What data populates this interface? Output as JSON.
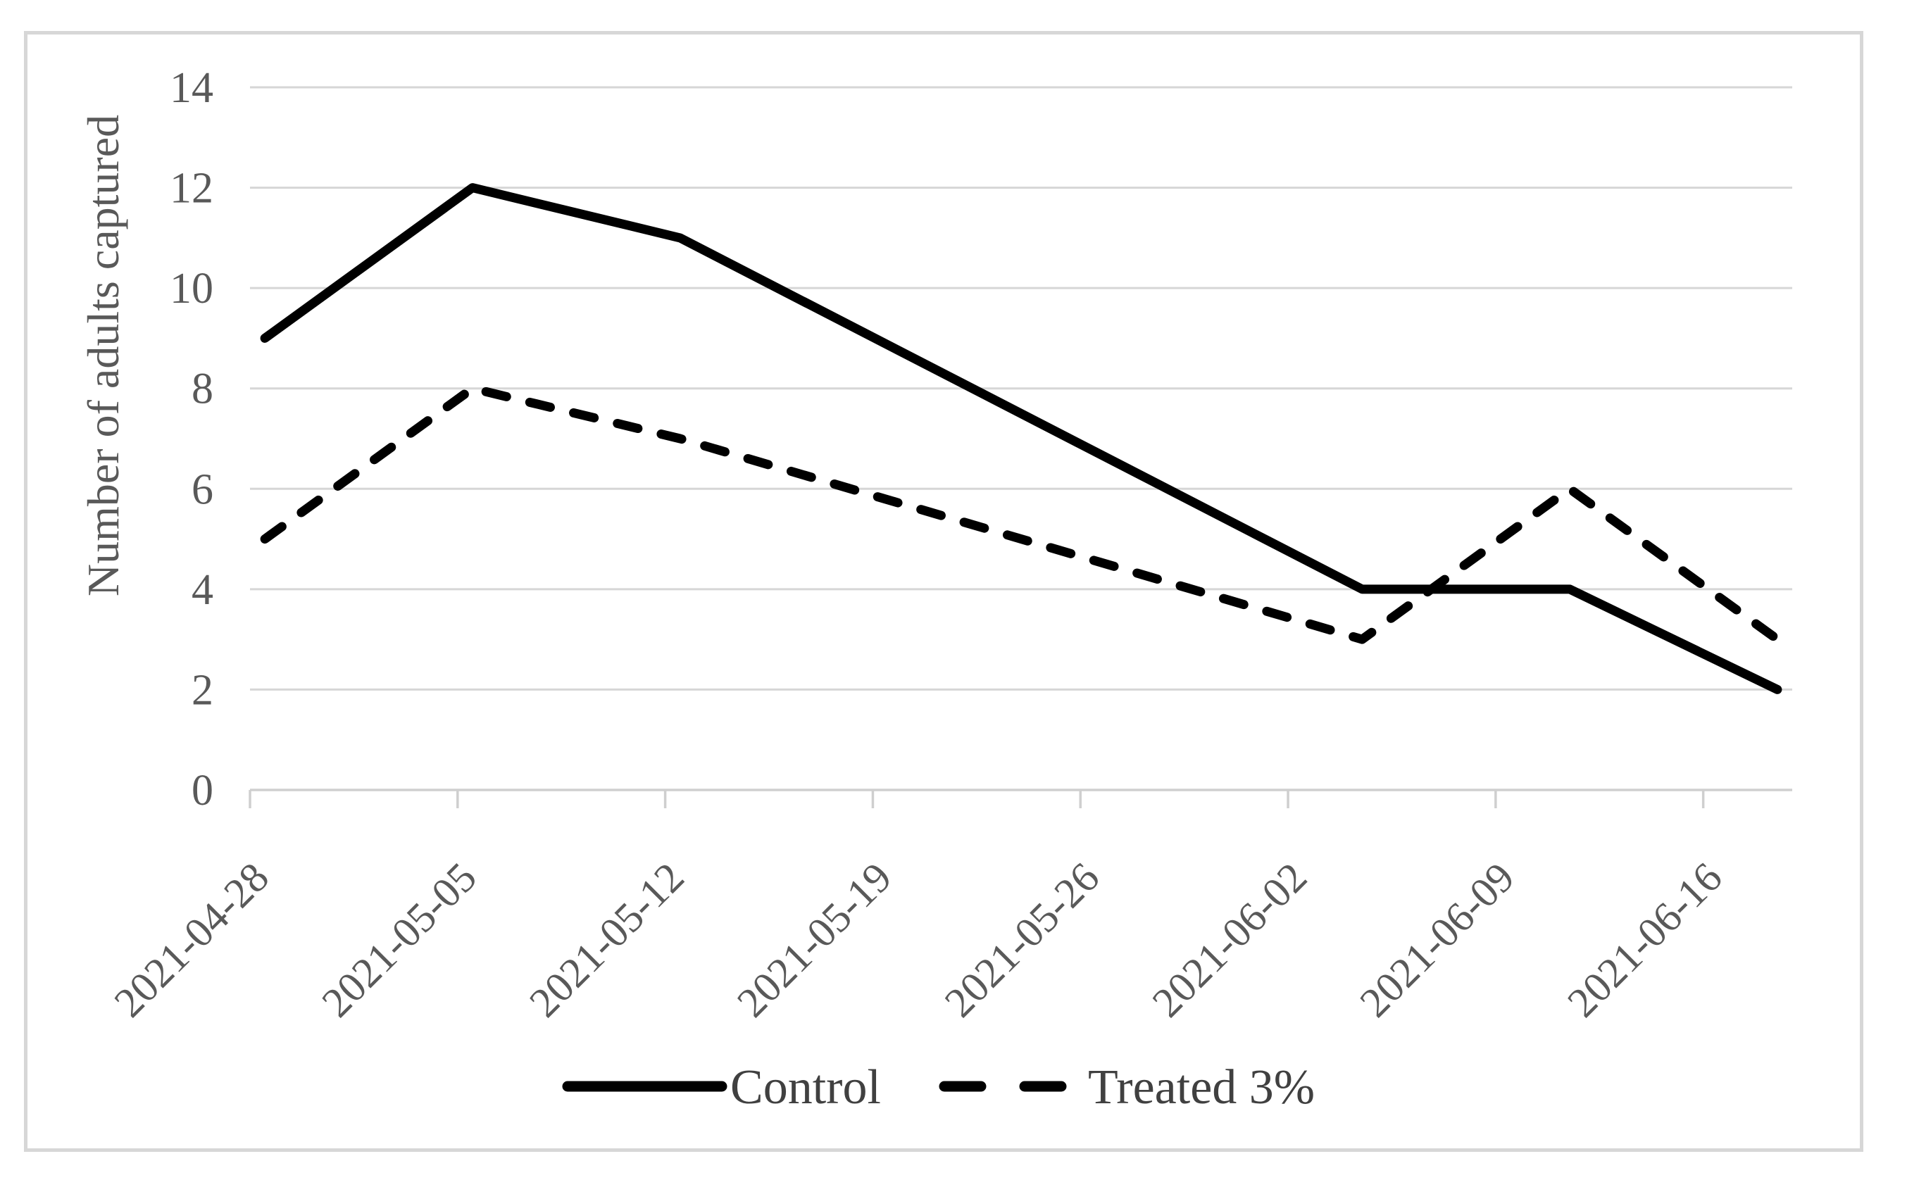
{
  "chart_data": {
    "type": "line",
    "title": "",
    "xlabel": "",
    "ylabel": "Number of adults captured",
    "ylim": [
      0,
      14
    ],
    "ytick_step": 2,
    "yticks": [
      "0",
      "2",
      "4",
      "6",
      "8",
      "10",
      "12",
      "14"
    ],
    "x": [
      "2021-04-28",
      "2021-05-05",
      "2021-05-12",
      "2021-06-04",
      "2021-06-11",
      "2021-06-18"
    ],
    "xtick_labels": [
      "2021-04-28",
      "2021-05-05",
      "2021-05-12",
      "2021-05-19",
      "2021-05-26",
      "2021-06-02",
      "2021-06-09",
      "2021-06-16"
    ],
    "series": [
      {
        "name": "Control",
        "style": "solid",
        "color": "#000000",
        "values": [
          9,
          12,
          11,
          4,
          4,
          2
        ]
      },
      {
        "name": "Treated 3%",
        "style": "dashed",
        "color": "#000000",
        "values": [
          5,
          8,
          7,
          3,
          6,
          3
        ]
      }
    ],
    "grid": "horizontal",
    "legend_position": "bottom-center",
    "colors": {
      "gridline": "#d6d6d6",
      "axis": "#cfcfcf",
      "tick_label": "#595959",
      "axis_title": "#595959",
      "legend_text": "#404040",
      "frame_border": "#d7d7d7",
      "background": "#ffffff"
    }
  }
}
